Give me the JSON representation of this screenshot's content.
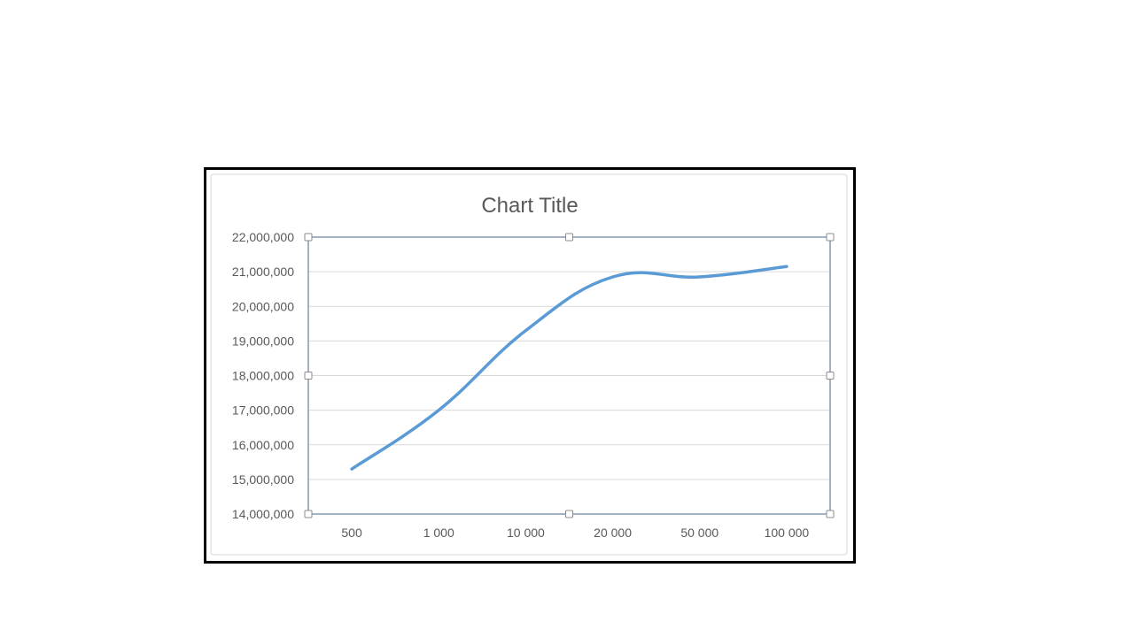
{
  "colors": {
    "series_line": "#5b9bd5",
    "gridline": "#d9d9d9",
    "plot_border": "#8497b0",
    "text": "#595959",
    "handle_border": "#8c8c8c"
  },
  "chart_data": {
    "type": "line",
    "title": "Chart Title",
    "xlabel": "",
    "ylabel": "",
    "categories": [
      "500",
      "1 000",
      "10 000",
      "20 000",
      "50 000",
      "100 000"
    ],
    "series": [
      {
        "values": [
          15300000,
          17000000,
          19300000,
          20850000,
          20850000,
          21150000
        ]
      }
    ],
    "ylim": [
      14000000,
      22000000
    ],
    "y_ticks": [
      "14,000,000",
      "15,000,000",
      "16,000,000",
      "17,000,000",
      "18,000,000",
      "19,000,000",
      "20,000,000",
      "21,000,000",
      "22,000,000"
    ],
    "smooth": true,
    "grid": true,
    "legend": "none"
  }
}
